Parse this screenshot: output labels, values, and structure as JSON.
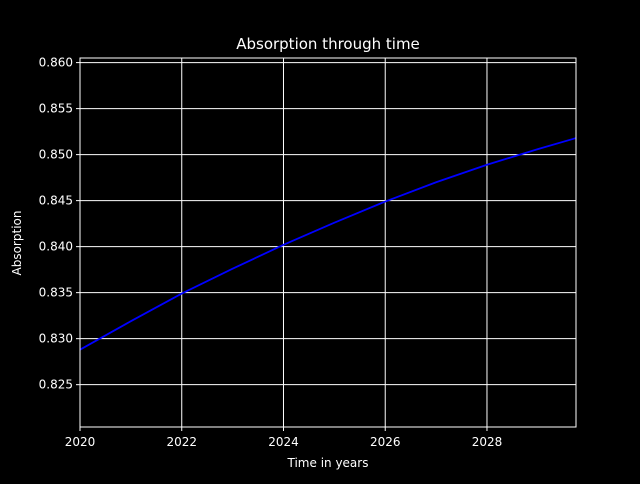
{
  "colors": {
    "background": "#000000",
    "foreground": "#ffffff",
    "grid": "#ffffff",
    "series": "#0000ff"
  },
  "chart_data": {
    "type": "line",
    "title": "Absorption through time",
    "xlabel": "Time in years",
    "ylabel": "Absorption",
    "xlim": [
      2020,
      29.75
    ],
    "ylim": [
      0.8204,
      0.8605
    ],
    "grid": true,
    "legend": "none",
    "x_ticks": [
      2020,
      2022,
      2024,
      2026,
      2028
    ],
    "x_tick_labels": [
      "2020",
      "2022",
      "2024",
      "2026",
      "2028"
    ],
    "y_ticks": [
      0.825,
      0.83,
      0.835,
      0.84,
      0.845,
      0.85,
      0.855,
      0.86
    ],
    "y_tick_labels": [
      "0.825",
      "0.830",
      "0.835",
      "0.840",
      "0.845",
      "0.850",
      "0.855",
      "0.860"
    ],
    "series": [
      {
        "color": "#0000ff",
        "x": [
          2020.0,
          2021.0,
          2022.0,
          2023.0,
          2024.0,
          2025.0,
          2026.0,
          2027.0,
          2028.0,
          2029.0,
          2029.75
        ],
        "y": [
          0.8288,
          0.8319,
          0.8349,
          0.8376,
          0.8402,
          0.8426,
          0.8449,
          0.847,
          0.8489,
          0.8506,
          0.8518
        ]
      }
    ]
  }
}
